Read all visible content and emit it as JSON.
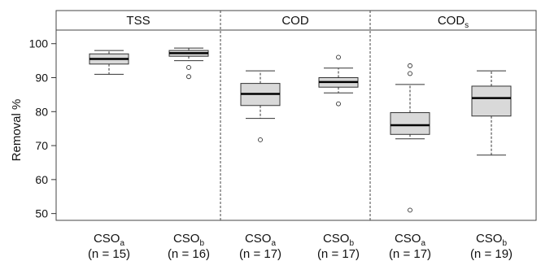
{
  "chart_data": {
    "type": "box",
    "ylabel": "Removal %",
    "ylim": [
      48,
      104
    ],
    "yticks": [
      50,
      60,
      70,
      80,
      90,
      100
    ],
    "grid": false,
    "colors": {
      "box_fill": "#d9d9d9",
      "stroke": "#333333",
      "median": "#000000"
    },
    "panels": [
      {
        "title": "TSS",
        "title_sub": "",
        "groups": [
          {
            "label_main": "CSO",
            "label_sub": "a",
            "n_label": "(n = 15)",
            "min": 91,
            "q1": 94,
            "median": 95.5,
            "q3": 97,
            "max": 98,
            "outliers": []
          },
          {
            "label_main": "CSO",
            "label_sub": "b",
            "n_label": "(n = 16)",
            "min": 95,
            "q1": 96.3,
            "median": 97.2,
            "q3": 98,
            "max": 98.7,
            "outliers": [
              93,
              90.3
            ]
          }
        ]
      },
      {
        "title": "COD",
        "title_sub": "",
        "groups": [
          {
            "label_main": "CSO",
            "label_sub": "a",
            "n_label": "(n = 17)",
            "min": 78,
            "q1": 81.8,
            "median": 85.2,
            "q3": 88.3,
            "max": 92,
            "outliers": [
              71.7
            ]
          },
          {
            "label_main": "CSO",
            "label_sub": "b",
            "n_label": "(n = 17)",
            "min": 85.5,
            "q1": 87.2,
            "median": 88.7,
            "q3": 90,
            "max": 92.8,
            "outliers": [
              96,
              82.3
            ]
          }
        ]
      },
      {
        "title": "COD",
        "title_sub": "s",
        "groups": [
          {
            "label_main": "CSO",
            "label_sub": "a",
            "n_label": "(n = 17)",
            "min": 72,
            "q1": 73.3,
            "median": 76,
            "q3": 79.7,
            "max": 88,
            "outliers": [
              93.5,
              91.2,
              51
            ]
          },
          {
            "label_main": "CSO",
            "label_sub": "b",
            "n_label": "(n = 19)",
            "min": 67.2,
            "q1": 78.7,
            "median": 84,
            "q3": 87.5,
            "max": 92,
            "outliers": []
          }
        ]
      }
    ]
  }
}
